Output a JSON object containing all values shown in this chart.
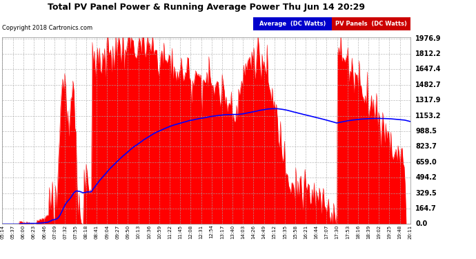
{
  "title": "Total PV Panel Power & Running Average Power Thu Jun 14 20:29",
  "copyright": "Copyright 2018 Cartronics.com",
  "bg_color": "#ffffff",
  "plot_bg_color": "#ffffff",
  "grid_color": "#aaaaaa",
  "pv_color": "#ff0000",
  "avg_color": "#0000ff",
  "title_color": "#000000",
  "copyright_color": "#000000",
  "legend_avg_bg": "#0000cc",
  "legend_pv_bg": "#cc0000",
  "legend_avg_text": "Average  (DC Watts)",
  "legend_pv_text": "PV Panels  (DC Watts)",
  "yticks": [
    0.0,
    164.7,
    329.5,
    494.2,
    659.0,
    823.7,
    988.5,
    1153.2,
    1317.9,
    1482.7,
    1647.4,
    1812.2,
    1976.9
  ],
  "ymax": 1976.9,
  "ymin": 0.0,
  "x_labels": [
    "05:14",
    "05:37",
    "06:00",
    "06:23",
    "06:46",
    "07:09",
    "07:32",
    "07:55",
    "08:18",
    "08:41",
    "09:04",
    "09:27",
    "09:50",
    "10:13",
    "10:36",
    "10:59",
    "11:22",
    "11:45",
    "12:08",
    "12:31",
    "12:54",
    "13:17",
    "13:40",
    "14:03",
    "14:26",
    "14:49",
    "15:12",
    "15:35",
    "15:58",
    "16:21",
    "16:44",
    "17:07",
    "17:30",
    "17:53",
    "18:16",
    "18:39",
    "19:02",
    "19:25",
    "19:48",
    "20:11"
  ],
  "n_points": 400
}
